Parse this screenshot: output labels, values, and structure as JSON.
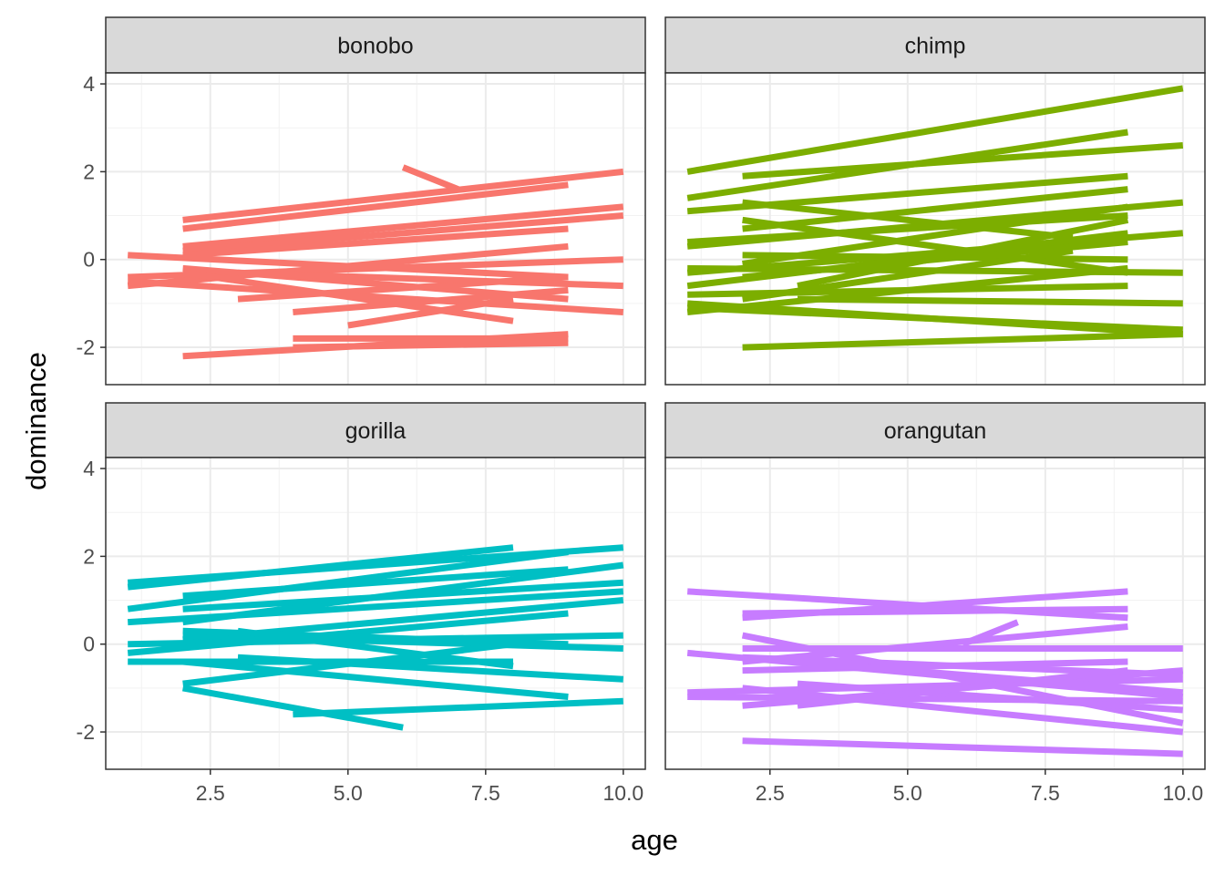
{
  "chart_data": {
    "type": "line",
    "xlabel": "age",
    "ylabel": "dominance",
    "xlim": [
      0.6,
      10.4
    ],
    "ylim": [
      -2.85,
      4.25
    ],
    "x_ticks": [
      2.5,
      5.0,
      7.5,
      10.0
    ],
    "x_tick_labels": [
      "2.5",
      "5.0",
      "7.5",
      "10.0"
    ],
    "y_ticks": [
      -2,
      0,
      2,
      4
    ],
    "y_tick_labels": [
      "-2",
      "0",
      "2",
      "4"
    ],
    "grid": true,
    "legend": "none",
    "facets": [
      {
        "name": "bonobo",
        "color": "#F8766D",
        "lines": [
          {
            "x": [
              2,
              10
            ],
            "y": [
              0.9,
              2.0
            ]
          },
          {
            "x": [
              2,
              9
            ],
            "y": [
              0.7,
              1.7
            ]
          },
          {
            "x": [
              6,
              7
            ],
            "y": [
              2.1,
              1.6
            ]
          },
          {
            "x": [
              2,
              10
            ],
            "y": [
              0.3,
              1.2
            ]
          },
          {
            "x": [
              2,
              10
            ],
            "y": [
              0.2,
              1.0
            ]
          },
          {
            "x": [
              2,
              9
            ],
            "y": [
              0.1,
              0.7
            ]
          },
          {
            "x": [
              1,
              9
            ],
            "y": [
              0.1,
              -0.4
            ]
          },
          {
            "x": [
              1,
              10
            ],
            "y": [
              -0.4,
              0.0
            ]
          },
          {
            "x": [
              1,
              9
            ],
            "y": [
              -0.6,
              0.3
            ]
          },
          {
            "x": [
              2,
              9
            ],
            "y": [
              -0.2,
              -0.9
            ]
          },
          {
            "x": [
              3,
              9
            ],
            "y": [
              -0.9,
              -0.4
            ]
          },
          {
            "x": [
              1,
              10
            ],
            "y": [
              -0.5,
              -1.2
            ]
          },
          {
            "x": [
              2,
              8
            ],
            "y": [
              -0.3,
              -1.4
            ]
          },
          {
            "x": [
              3,
              10
            ],
            "y": [
              -0.3,
              -0.6
            ]
          },
          {
            "x": [
              4,
              9
            ],
            "y": [
              -1.2,
              -0.7
            ]
          },
          {
            "x": [
              5,
              8
            ],
            "y": [
              -1.5,
              -0.9
            ]
          },
          {
            "x": [
              4,
              9
            ],
            "y": [
              -1.8,
              -1.8
            ]
          },
          {
            "x": [
              4,
              9
            ],
            "y": [
              -2.0,
              -1.9
            ]
          },
          {
            "x": [
              2,
              9
            ],
            "y": [
              -2.2,
              -1.7
            ]
          }
        ]
      },
      {
        "name": "chimp",
        "color": "#7CAE00",
        "lines": [
          {
            "x": [
              1,
              10
            ],
            "y": [
              2.0,
              3.9
            ]
          },
          {
            "x": [
              1,
              9
            ],
            "y": [
              1.4,
              2.9
            ]
          },
          {
            "x": [
              2,
              10
            ],
            "y": [
              1.9,
              2.6
            ]
          },
          {
            "x": [
              1,
              9
            ],
            "y": [
              1.1,
              1.9
            ]
          },
          {
            "x": [
              1,
              10
            ],
            "y": [
              0.3,
              1.3
            ]
          },
          {
            "x": [
              2,
              9
            ],
            "y": [
              0.7,
              1.6
            ]
          },
          {
            "x": [
              1,
              9
            ],
            "y": [
              0.4,
              1.0
            ]
          },
          {
            "x": [
              2,
              8
            ],
            "y": [
              1.3,
              0.5
            ]
          },
          {
            "x": [
              1,
              10
            ],
            "y": [
              -0.3,
              0.6
            ]
          },
          {
            "x": [
              1,
              9
            ],
            "y": [
              -0.6,
              0.6
            ]
          },
          {
            "x": [
              2,
              9
            ],
            "y": [
              0.1,
              0.0
            ]
          },
          {
            "x": [
              1,
              10
            ],
            "y": [
              -0.2,
              -0.3
            ]
          },
          {
            "x": [
              2,
              9
            ],
            "y": [
              -0.4,
              0.4
            ]
          },
          {
            "x": [
              1,
              9
            ],
            "y": [
              -0.8,
              -0.6
            ]
          },
          {
            "x": [
              3,
              10
            ],
            "y": [
              -0.9,
              -1.0
            ]
          },
          {
            "x": [
              1,
              10
            ],
            "y": [
              -1.0,
              -1.7
            ]
          },
          {
            "x": [
              1,
              9
            ],
            "y": [
              -1.2,
              -0.2
            ]
          },
          {
            "x": [
              2,
              9
            ],
            "y": [
              0.9,
              -0.3
            ]
          },
          {
            "x": [
              1,
              10
            ],
            "y": [
              -1.1,
              -1.6
            ]
          },
          {
            "x": [
              2,
              10
            ],
            "y": [
              -2.0,
              -1.7
            ]
          },
          {
            "x": [
              2,
              9
            ],
            "y": [
              -0.1,
              1.2
            ]
          },
          {
            "x": [
              3,
              9
            ],
            "y": [
              -0.6,
              0.9
            ]
          },
          {
            "x": [
              2,
              8
            ],
            "y": [
              -0.9,
              0.2
            ]
          }
        ]
      },
      {
        "name": "gorilla",
        "color": "#00BFC4",
        "lines": [
          {
            "x": [
              1,
              10
            ],
            "y": [
              1.4,
              2.2
            ]
          },
          {
            "x": [
              1,
              8
            ],
            "y": [
              1.3,
              2.2
            ]
          },
          {
            "x": [
              2,
              9
            ],
            "y": [
              1.1,
              1.7
            ]
          },
          {
            "x": [
              1,
              9
            ],
            "y": [
              0.8,
              2.1
            ]
          },
          {
            "x": [
              2,
              10
            ],
            "y": [
              0.5,
              1.8
            ]
          },
          {
            "x": [
              1,
              10
            ],
            "y": [
              0.5,
              1.2
            ]
          },
          {
            "x": [
              2,
              10
            ],
            "y": [
              0.8,
              1.4
            ]
          },
          {
            "x": [
              2,
              10
            ],
            "y": [
              0.1,
              1.0
            ]
          },
          {
            "x": [
              1,
              10
            ],
            "y": [
              0.0,
              0.2
            ]
          },
          {
            "x": [
              1,
              9
            ],
            "y": [
              -0.2,
              0.7
            ]
          },
          {
            "x": [
              2,
              10
            ],
            "y": [
              0.2,
              -0.1
            ]
          },
          {
            "x": [
              2,
              9
            ],
            "y": [
              0.3,
              0.0
            ]
          },
          {
            "x": [
              1,
              8
            ],
            "y": [
              -0.4,
              -0.4
            ]
          },
          {
            "x": [
              2,
              9
            ],
            "y": [
              -0.4,
              -1.2
            ]
          },
          {
            "x": [
              3,
              10
            ],
            "y": [
              -0.3,
              -0.8
            ]
          },
          {
            "x": [
              2,
              8
            ],
            "y": [
              -0.9,
              0.0
            ]
          },
          {
            "x": [
              2,
              6
            ],
            "y": [
              -1.0,
              -1.9
            ]
          },
          {
            "x": [
              4,
              10
            ],
            "y": [
              -1.6,
              -1.3
            ]
          },
          {
            "x": [
              3,
              8
            ],
            "y": [
              0.3,
              -0.5
            ]
          }
        ]
      },
      {
        "name": "orangutan",
        "color": "#C77CFF",
        "lines": [
          {
            "x": [
              1,
              9
            ],
            "y": [
              1.2,
              0.6
            ]
          },
          {
            "x": [
              2,
              9
            ],
            "y": [
              0.6,
              1.2
            ]
          },
          {
            "x": [
              2,
              9
            ],
            "y": [
              0.7,
              0.8
            ]
          },
          {
            "x": [
              6,
              7
            ],
            "y": [
              0.0,
              0.5
            ]
          },
          {
            "x": [
              2,
              10
            ],
            "y": [
              -0.1,
              -0.1
            ]
          },
          {
            "x": [
              1,
              10
            ],
            "y": [
              -0.2,
              -1.2
            ]
          },
          {
            "x": [
              2,
              10
            ],
            "y": [
              -0.3,
              -0.7
            ]
          },
          {
            "x": [
              2,
              9
            ],
            "y": [
              -0.4,
              0.4
            ]
          },
          {
            "x": [
              2,
              10
            ],
            "y": [
              0.2,
              -1.8
            ]
          },
          {
            "x": [
              1,
              10
            ],
            "y": [
              -1.1,
              -0.8
            ]
          },
          {
            "x": [
              1,
              10
            ],
            "y": [
              -1.2,
              -1.3
            ]
          },
          {
            "x": [
              2,
              10
            ],
            "y": [
              -1.4,
              -0.6
            ]
          },
          {
            "x": [
              3,
              10
            ],
            "y": [
              -0.9,
              -1.5
            ]
          },
          {
            "x": [
              2,
              10
            ],
            "y": [
              -1.0,
              -2.0
            ]
          },
          {
            "x": [
              3,
              9
            ],
            "y": [
              -1.4,
              -0.6
            ]
          },
          {
            "x": [
              2,
              10
            ],
            "y": [
              -2.2,
              -2.5
            ]
          },
          {
            "x": [
              2,
              9
            ],
            "y": [
              -0.6,
              -0.4
            ]
          },
          {
            "x": [
              3,
              10
            ],
            "y": [
              -0.4,
              -1.1
            ]
          }
        ]
      }
    ]
  }
}
